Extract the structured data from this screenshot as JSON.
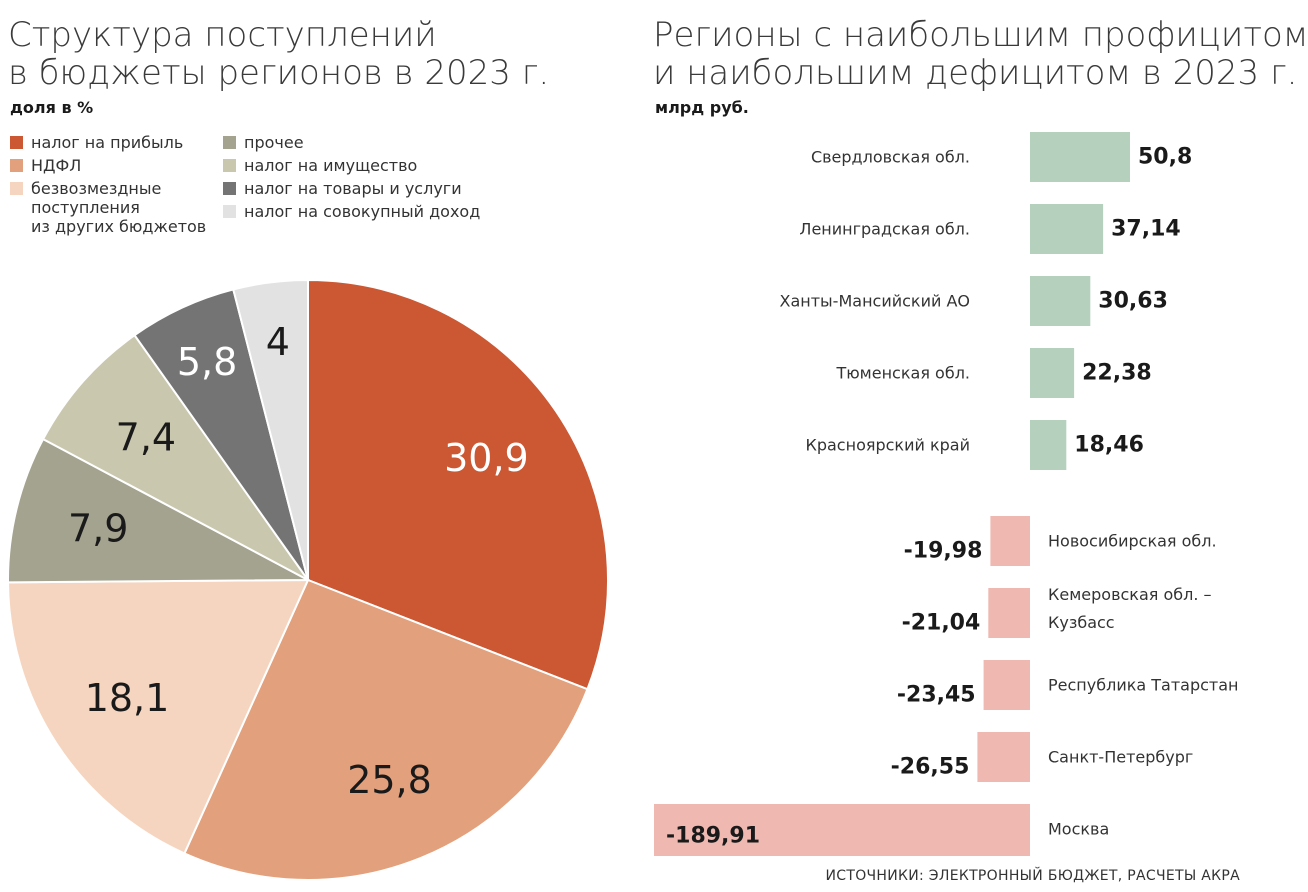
{
  "left": {
    "title_line1": "Структура поступлений",
    "title_line2": "в бюджеты регионов в 2023 г.",
    "subtitle": "доля в %"
  },
  "right": {
    "title_line1": "Регионы с наибольшим профицитом",
    "title_line2": "и наибольшим дефицитом в 2023 г.",
    "subtitle": "млрд руб."
  },
  "source": "ИСТОЧНИКИ: ЭЛЕКТРОННЫЙ БЮДЖЕТ, РАСЧЕТЫ АКРА",
  "legend": {
    "col1": [
      {
        "label": "налог на прибыль",
        "color": "#cc5733"
      },
      {
        "label": "НДФЛ",
        "color": "#e2a07c"
      },
      {
        "label": "безвозмездные\nпоступления\nиз других бюджетов",
        "color": "#f5d5bf"
      }
    ],
    "col2": [
      {
        "label": "прочее",
        "color": "#a4a38f"
      },
      {
        "label": "налог на имущество",
        "color": "#c9c7ae"
      },
      {
        "label": "налог на товары и услуги",
        "color": "#757474"
      },
      {
        "label": "налог на совокупный доход",
        "color": "#e2e2e2"
      }
    ]
  },
  "chart_data": [
    {
      "type": "pie",
      "title": "Структура поступлений в бюджеты регионов в 2023 г.",
      "unit": "доля в %",
      "slices": [
        {
          "name": "налог на прибыль",
          "value": 30.9,
          "label": "30,9",
          "color": "#cc5733",
          "text_color": "#ffffff"
        },
        {
          "name": "НДФЛ",
          "value": 25.8,
          "label": "25,8",
          "color": "#e2a07c",
          "text_color": "#1a1a1a"
        },
        {
          "name": "безвозмездные поступления из других бюджетов",
          "value": 18.1,
          "label": "18,1",
          "color": "#f5d5bf",
          "text_color": "#1a1a1a"
        },
        {
          "name": "прочее",
          "value": 7.9,
          "label": "7,9",
          "color": "#a4a38f",
          "text_color": "#1a1a1a"
        },
        {
          "name": "налог на имущество",
          "value": 7.4,
          "label": "7,4",
          "color": "#c9c7ae",
          "text_color": "#1a1a1a"
        },
        {
          "name": "налог на товары и услуги",
          "value": 5.8,
          "label": "5,8",
          "color": "#757474",
          "text_color": "#ffffff"
        },
        {
          "name": "налог на совокупный доход",
          "value": 4,
          "label": "4",
          "color": "#e2e2e2",
          "text_color": "#1a1a1a"
        }
      ]
    },
    {
      "type": "bar",
      "orientation": "horizontal",
      "title": "Регионы с наибольшим профицитом и наибольшим дефицитом в 2023 г.",
      "unit": "млрд руб.",
      "positive_color": "#b5d0bd",
      "negative_color": "#efb8b0",
      "bars": [
        {
          "name": "Свердловская обл.",
          "value": 50.8,
          "label": "50,8"
        },
        {
          "name": "Ленинградская обл.",
          "value": 37.14,
          "label": "37,14"
        },
        {
          "name": "Ханты-Мансийский АО",
          "value": 30.63,
          "label": "30,63"
        },
        {
          "name": "Тюменская обл.",
          "value": 22.38,
          "label": "22,38"
        },
        {
          "name": "Красноярский край",
          "value": 18.46,
          "label": "18,46"
        },
        {
          "name": "Новосибирская обл.",
          "value": -19.98,
          "label": "-19,98"
        },
        {
          "name": "Кемеровская обл. –\nКузбасс",
          "value": -21.04,
          "label": "-21,04"
        },
        {
          "name": "Республика Татарстан",
          "value": -23.45,
          "label": "-23,45"
        },
        {
          "name": "Санкт-Петербург",
          "value": -26.55,
          "label": "-26,55"
        },
        {
          "name": "Москва",
          "value": -189.91,
          "label": "-189,91"
        }
      ]
    }
  ]
}
